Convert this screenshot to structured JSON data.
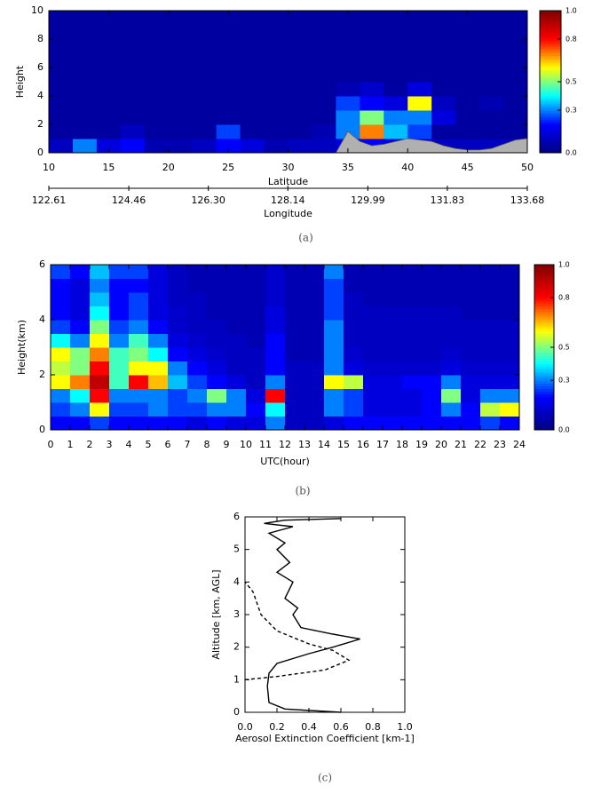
{
  "chart_data": [
    {
      "type": "heatmap",
      "caption": "(a)",
      "xlabel": "Latitude",
      "ylabel": "Height",
      "x2label": "Longitude",
      "xlim": [
        10,
        50
      ],
      "xticks": [
        10,
        15,
        20,
        25,
        30,
        35,
        40,
        45,
        50
      ],
      "ylim": [
        0,
        10
      ],
      "yticks": [
        0,
        2,
        4,
        6,
        8,
        10
      ],
      "x2lim": [
        122.61,
        133.68
      ],
      "x2ticks": [
        122.61,
        124.46,
        {
          "value": 126.3,
          "label": "126.30"
        },
        128.14,
        129.99,
        131.83,
        133.68
      ],
      "zlim": [
        0,
        1
      ],
      "cticks": [
        {
          "value": 0,
          "label": "0.0"
        },
        {
          "value": 0.3,
          "label": "0.3"
        },
        {
          "value": 0.5,
          "label": "0.5"
        },
        {
          "value": 0.8,
          "label": "0.8"
        },
        {
          "value": 1,
          "label": "1.0"
        }
      ],
      "colormap": [
        "#000080",
        "#0000ff",
        "#00ffff",
        "#ffff00",
        "#ff0000",
        "#800000"
      ],
      "x": [
        11,
        13,
        15,
        17,
        19,
        21,
        23,
        25,
        27,
        29,
        31,
        33,
        35,
        37,
        39,
        41,
        43,
        45,
        47,
        49
      ],
      "y": [
        0.5,
        1.5,
        2.5,
        3.5,
        4.5,
        5.5,
        6.5,
        7.5,
        8.5,
        9.5
      ],
      "z": [
        [
          0.1,
          0.3,
          0.15,
          0.2,
          0.08,
          0.08,
          0.1,
          0.2,
          0.15,
          0.08,
          0.1,
          0.1,
          0.15,
          0.2,
          0.15,
          0.15,
          0.1,
          0.1,
          0.1,
          0.1
        ],
        [
          0.05,
          0.05,
          0.05,
          0.1,
          0.05,
          0.05,
          0.05,
          0.25,
          0.05,
          0.05,
          0.05,
          0.08,
          0.3,
          0.7,
          0.35,
          0.25,
          0.05,
          0.05,
          0.05,
          0.05
        ],
        [
          0.05,
          0.05,
          0.05,
          0.05,
          0.05,
          0.05,
          0.05,
          0.05,
          0.05,
          0.05,
          0.05,
          0.05,
          0.3,
          0.5,
          0.3,
          0.3,
          0.15,
          0.05,
          0.05,
          0.05
        ],
        [
          0.05,
          0.05,
          0.05,
          0.05,
          0.05,
          0.05,
          0.05,
          0.05,
          0.05,
          0.05,
          0.05,
          0.05,
          0.25,
          0.2,
          0.15,
          0.6,
          0.1,
          0.05,
          0.08,
          0.05
        ],
        [
          0.05,
          0.05,
          0.05,
          0.05,
          0.05,
          0.05,
          0.05,
          0.05,
          0.05,
          0.05,
          0.05,
          0.05,
          0.08,
          0.12,
          0.05,
          0.15,
          0.05,
          0.05,
          0.05,
          0.05
        ],
        [
          0.05,
          0.05,
          0.05,
          0.05,
          0.05,
          0.05,
          0.05,
          0.05,
          0.05,
          0.05,
          0.05,
          0.05,
          0.05,
          0.05,
          0.05,
          0.05,
          0.05,
          0.05,
          0.05,
          0.05
        ],
        [
          0.05,
          0.05,
          0.05,
          0.05,
          0.05,
          0.05,
          0.05,
          0.05,
          0.05,
          0.05,
          0.05,
          0.05,
          0.05,
          0.05,
          0.05,
          0.05,
          0.05,
          0.05,
          0.05,
          0.05
        ],
        [
          0.05,
          0.05,
          0.05,
          0.05,
          0.05,
          0.05,
          0.05,
          0.05,
          0.05,
          0.05,
          0.05,
          0.05,
          0.05,
          0.05,
          0.05,
          0.05,
          0.05,
          0.05,
          0.05,
          0.05
        ],
        [
          0.05,
          0.05,
          0.05,
          0.05,
          0.05,
          0.05,
          0.05,
          0.05,
          0.05,
          0.05,
          0.05,
          0.05,
          0.05,
          0.05,
          0.05,
          0.05,
          0.05,
          0.05,
          0.05,
          0.05
        ],
        [
          0.05,
          0.05,
          0.05,
          0.05,
          0.05,
          0.05,
          0.05,
          0.05,
          0.05,
          0.05,
          0.05,
          0.05,
          0.05,
          0.05,
          0.05,
          0.05,
          0.05,
          0.05,
          0.05,
          0.05
        ]
      ],
      "terrain": {
        "color": "#b0b0b0",
        "x": [
          34,
          35,
          36,
          37,
          38,
          39,
          40,
          41,
          42,
          43,
          44,
          45,
          46,
          47,
          48,
          49,
          50
        ],
        "values": [
          0,
          1.5,
          0.8,
          0.5,
          0.6,
          0.8,
          1.0,
          0.9,
          0.8,
          0.5,
          0.3,
          0.2,
          0.2,
          0.3,
          0.6,
          0.9,
          1.0
        ]
      }
    },
    {
      "type": "heatmap",
      "caption": "(b)",
      "xlabel": "UTC(hour)",
      "ylabel": "Height(km)",
      "xlim": [
        0,
        24
      ],
      "xticks": [
        0,
        1,
        2,
        3,
        4,
        5,
        6,
        7,
        8,
        9,
        10,
        11,
        12,
        13,
        14,
        15,
        16,
        17,
        18,
        19,
        20,
        21,
        22,
        23,
        24
      ],
      "ylim": [
        0,
        6
      ],
      "yticks": [
        0,
        2,
        4,
        6
      ],
      "zlim": [
        0,
        1
      ],
      "cticks": [
        {
          "value": 0,
          "label": "0.0"
        },
        {
          "value": 0.3,
          "label": "0.3"
        },
        {
          "value": 0.5,
          "label": "0.5"
        },
        {
          "value": 0.8,
          "label": "0.8"
        },
        {
          "value": 1,
          "label": "1.0"
        }
      ],
      "colormap": [
        "#000080",
        "#0000ff",
        "#00ffff",
        "#ffff00",
        "#ff0000",
        "#800000"
      ],
      "x": [
        0.5,
        1.5,
        2.5,
        3.5,
        4.5,
        5.5,
        6.5,
        7.5,
        8.5,
        9.5,
        10.5,
        11.5,
        12.5,
        13.5,
        14.5,
        15.5,
        16.5,
        17.5,
        18.5,
        19.5,
        20.5,
        21.5,
        22.5,
        23.5
      ],
      "y": [
        0.25,
        0.75,
        1.25,
        1.75,
        2.25,
        2.75,
        3.25,
        3.75,
        4.25,
        4.75,
        5.25,
        5.75
      ],
      "z": [
        [
          0.2,
          0.2,
          0.25,
          0.2,
          0.2,
          0.2,
          0.2,
          0.15,
          0.2,
          0.15,
          0.15,
          0.3,
          0.1,
          0.1,
          0.15,
          0.2,
          0.2,
          0.2,
          0.2,
          0.2,
          0.2,
          0.2,
          0.25,
          0.2
        ],
        [
          0.25,
          0.3,
          0.6,
          0.25,
          0.25,
          0.3,
          0.25,
          0.25,
          0.3,
          0.3,
          0.2,
          0.4,
          0.1,
          0.1,
          0.3,
          0.25,
          0.15,
          0.15,
          0.15,
          0.2,
          0.3,
          0.2,
          0.55,
          0.6
        ],
        [
          0.3,
          0.4,
          0.8,
          0.3,
          0.3,
          0.3,
          0.25,
          0.3,
          0.5,
          0.3,
          0.15,
          0.8,
          0.1,
          0.1,
          0.3,
          0.25,
          0.15,
          0.15,
          0.15,
          0.2,
          0.5,
          0.15,
          0.3,
          0.3
        ],
        [
          0.6,
          0.7,
          0.9,
          0.45,
          0.8,
          0.65,
          0.35,
          0.25,
          0.2,
          0.15,
          0.1,
          0.3,
          0.1,
          0.1,
          0.6,
          0.55,
          0.15,
          0.15,
          0.2,
          0.2,
          0.3,
          0.15,
          0.15,
          0.15
        ],
        [
          0.55,
          0.5,
          0.8,
          0.45,
          0.6,
          0.6,
          0.3,
          0.2,
          0.15,
          0.1,
          0.1,
          0.2,
          0.1,
          0.1,
          0.3,
          0.15,
          0.12,
          0.12,
          0.12,
          0.12,
          0.15,
          0.12,
          0.12,
          0.12
        ],
        [
          0.6,
          0.5,
          0.7,
          0.45,
          0.5,
          0.4,
          0.2,
          0.15,
          0.12,
          0.1,
          0.1,
          0.2,
          0.08,
          0.08,
          0.3,
          0.12,
          0.1,
          0.1,
          0.1,
          0.1,
          0.12,
          0.1,
          0.1,
          0.1
        ],
        [
          0.4,
          0.3,
          0.6,
          0.3,
          0.45,
          0.3,
          0.15,
          0.12,
          0.1,
          0.1,
          0.08,
          0.2,
          0.08,
          0.08,
          0.3,
          0.1,
          0.1,
          0.1,
          0.1,
          0.1,
          0.1,
          0.1,
          0.1,
          0.1
        ],
        [
          0.25,
          0.2,
          0.5,
          0.25,
          0.3,
          0.2,
          0.12,
          0.1,
          0.1,
          0.08,
          0.08,
          0.15,
          0.08,
          0.08,
          0.3,
          0.1,
          0.1,
          0.1,
          0.1,
          0.1,
          0.1,
          0.1,
          0.1,
          0.1
        ],
        [
          0.2,
          0.15,
          0.4,
          0.2,
          0.25,
          0.15,
          0.12,
          0.1,
          0.08,
          0.08,
          0.08,
          0.15,
          0.08,
          0.08,
          0.25,
          0.1,
          0.1,
          0.1,
          0.1,
          0.1,
          0.1,
          0.08,
          0.08,
          0.08
        ],
        [
          0.2,
          0.15,
          0.35,
          0.2,
          0.25,
          0.15,
          0.1,
          0.1,
          0.08,
          0.08,
          0.08,
          0.12,
          0.08,
          0.08,
          0.25,
          0.1,
          0.08,
          0.08,
          0.08,
          0.08,
          0.08,
          0.08,
          0.08,
          0.08
        ],
        [
          0.2,
          0.15,
          0.3,
          0.2,
          0.2,
          0.15,
          0.1,
          0.08,
          0.08,
          0.08,
          0.08,
          0.12,
          0.08,
          0.08,
          0.25,
          0.08,
          0.08,
          0.08,
          0.08,
          0.08,
          0.08,
          0.08,
          0.08,
          0.08
        ],
        [
          0.25,
          0.2,
          0.35,
          0.25,
          0.25,
          0.15,
          0.1,
          0.08,
          0.08,
          0.08,
          0.08,
          0.12,
          0.08,
          0.08,
          0.3,
          0.08,
          0.08,
          0.08,
          0.08,
          0.08,
          0.08,
          0.08,
          0.08,
          0.08
        ]
      ]
    },
    {
      "type": "line",
      "caption": "(c)",
      "xlabel": "Aerosol Extinction Coefficient [km-1]",
      "ylabel": "Altitude [km, AGL]",
      "xlim": [
        0,
        1
      ],
      "xticks": [
        {
          "value": 0,
          "label": "0.0"
        },
        0.2,
        0.4,
        0.6,
        0.8,
        {
          "value": 1,
          "label": "1.0"
        }
      ],
      "ylim": [
        0,
        6
      ],
      "yticks": [
        0,
        1,
        2,
        3,
        4,
        5,
        6
      ],
      "series": [
        {
          "color": "#000000",
          "style": "solid",
          "values": [
            0.6,
            0.25,
            0.15,
            0.14,
            0.15,
            0.2,
            0.4,
            0.55,
            0.72,
            0.55,
            0.35,
            0.3,
            0.33,
            0.25,
            0.3,
            0.2,
            0.28,
            0.2,
            0.25,
            0.15,
            0.3,
            0.12,
            0.25,
            0.6
          ],
          "y": [
            0.0,
            0.1,
            0.3,
            0.8,
            1.2,
            1.5,
            1.8,
            2.0,
            2.25,
            2.4,
            2.6,
            3.0,
            3.2,
            3.5,
            4.0,
            4.3,
            4.6,
            5.0,
            5.2,
            5.5,
            5.7,
            5.8,
            5.9,
            5.95
          ]
        },
        {
          "color": "#000000",
          "style": "dashed",
          "values": [
            0.0,
            0.2,
            0.5,
            0.65,
            0.55,
            0.4,
            0.2,
            0.1,
            0.05,
            0.0
          ],
          "y": [
            1.0,
            1.1,
            1.3,
            1.6,
            1.9,
            2.1,
            2.5,
            3.0,
            3.7,
            4.0
          ]
        }
      ]
    }
  ]
}
